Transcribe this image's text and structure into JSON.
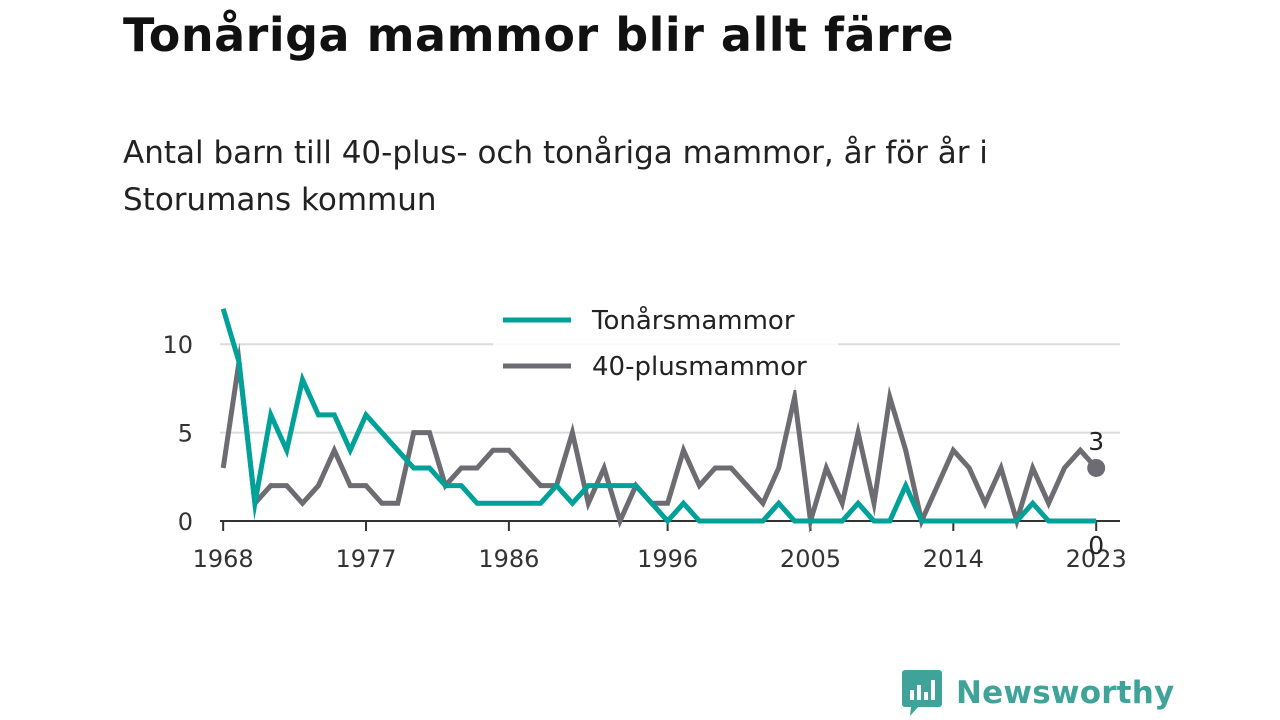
{
  "header": {
    "title": "Tonåriga mammor blir allt färre",
    "subtitle": "Antal barn till 40-plus- och tonåriga mammor, år för år i Storumans kommun"
  },
  "brand": {
    "name": "Newsworthy",
    "icon": "newsworthy-logo-icon",
    "color": "#3fa39a"
  },
  "chart_data": {
    "type": "line",
    "title": "Tonåriga mammor blir allt färre",
    "subtitle": "Antal barn till 40-plus- och tonåriga mammor, år för år i Storumans kommun",
    "xlabel": "",
    "ylabel": "",
    "x": [
      1968,
      1969,
      1970,
      1971,
      1972,
      1973,
      1974,
      1975,
      1976,
      1977,
      1978,
      1979,
      1980,
      1981,
      1982,
      1983,
      1984,
      1985,
      1986,
      1987,
      1988,
      1989,
      1990,
      1991,
      1992,
      1993,
      1994,
      1995,
      1996,
      1997,
      1998,
      1999,
      2000,
      2001,
      2002,
      2003,
      2004,
      2005,
      2006,
      2007,
      2008,
      2009,
      2010,
      2011,
      2012,
      2013,
      2014,
      2015,
      2016,
      2017,
      2018,
      2019,
      2020,
      2021,
      2022,
      2023
    ],
    "x_ticks": [
      1968,
      1977,
      1986,
      1996,
      2005,
      2014,
      2023
    ],
    "x_tick_labels": [
      "1968",
      "1977",
      "1986",
      "1996",
      "2005",
      "2014",
      "2023"
    ],
    "xlim": [
      1967.8,
      2024.5
    ],
    "y_ticks": [
      0,
      5,
      10
    ],
    "y_tick_labels": [
      "0",
      "5",
      "10"
    ],
    "ylim": [
      0,
      12.5
    ],
    "grid": true,
    "legend_position": "top-center",
    "series": [
      {
        "name": "Tonårsmammor",
        "color": "#00a199",
        "values": [
          12,
          9,
          1,
          6,
          4,
          8,
          6,
          6,
          4,
          6,
          5,
          4,
          3,
          3,
          2,
          2,
          1,
          1,
          1,
          1,
          1,
          2,
          1,
          2,
          2,
          2,
          2,
          1,
          0,
          1,
          0,
          0,
          0,
          0,
          0,
          1,
          0,
          0,
          0,
          0,
          1,
          0,
          0,
          2,
          0,
          0,
          0,
          0,
          0,
          0,
          0,
          1,
          0,
          0,
          0,
          0
        ],
        "end_label": "0"
      },
      {
        "name": "40-plusmammor",
        "color": "#6d6c72",
        "values": [
          3,
          9,
          1,
          2,
          2,
          1,
          2,
          4,
          2,
          2,
          1,
          1,
          5,
          5,
          2,
          3,
          3,
          4,
          4,
          3,
          2,
          2,
          5,
          1,
          3,
          0,
          2,
          1,
          1,
          4,
          2,
          3,
          3,
          2,
          1,
          3,
          7,
          0,
          3,
          1,
          5,
          1,
          7,
          4,
          0,
          2,
          4,
          3,
          1,
          3,
          0,
          3,
          1,
          3,
          4,
          3
        ],
        "end_label": "3"
      }
    ]
  }
}
